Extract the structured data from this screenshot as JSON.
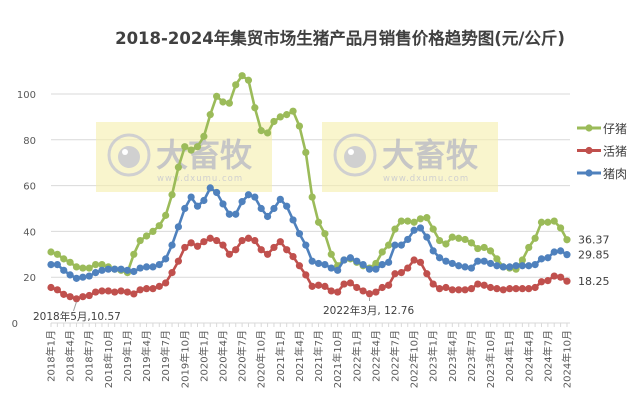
{
  "chart_data": {
    "type": "line",
    "title": "2018-2024年集贸市场生猪产品月销售价格趋势图(元/公斤)",
    "xlabel": "",
    "ylabel": "",
    "ylim": [
      0,
      120
    ],
    "y_ticks": [
      "0",
      "20",
      "40",
      "60",
      "80",
      "100"
    ],
    "grid": true,
    "legend_position": "right",
    "x_start": "2018年1月",
    "x_end": "2024年10月",
    "x_tick_labels": [
      "2018年1月",
      "2018年4月",
      "2018年7月",
      "2018年10月",
      "2019年1月",
      "2019年4月",
      "2019年7月",
      "2019年10月",
      "2020年1月",
      "2020年4月",
      "2020年7月",
      "2020年10月",
      "2021年1月",
      "2021年4月",
      "2021年7月",
      "2021年10月",
      "2022年1月",
      "2022年4月",
      "2022年7月",
      "2022年10月",
      "2023年1月",
      "2023年4月",
      "2023年7月",
      "2023年10月",
      "2024年1月",
      "2024年4月",
      "2024年7月",
      "2024年10月"
    ],
    "series": [
      {
        "name": "仔猪",
        "color": "#9BBB59",
        "end_label": "36.37",
        "values": [
          31,
          30,
          28,
          26.5,
          24.5,
          24,
          24,
          25.5,
          25.5,
          24.5,
          23.5,
          23,
          22,
          30,
          36,
          38,
          40,
          42.5,
          47,
          56,
          68,
          77,
          75.5,
          77,
          81.5,
          91,
          99,
          96.5,
          96,
          104,
          108,
          106,
          94,
          84,
          83,
          88,
          90,
          91,
          92.5,
          86,
          74.5,
          55,
          44,
          39,
          30,
          25,
          27.5,
          28,
          26.5,
          25,
          24,
          26,
          31,
          34,
          41,
          44.5,
          44.5,
          44,
          45.5,
          46,
          41,
          36,
          34.5,
          37.5,
          37,
          36.5,
          35,
          32.5,
          33,
          31.5,
          28,
          24.5,
          24,
          23.5,
          27.5,
          33,
          37,
          44,
          44,
          44.5,
          41.5,
          36.37
        ]
      },
      {
        "name": "活猪",
        "color": "#C0504D",
        "end_label": "18.25",
        "values": [
          15.5,
          14.5,
          12.5,
          11.5,
          10.57,
          11.5,
          12,
          13.5,
          14,
          14,
          13.5,
          14,
          13.5,
          12.7,
          14.5,
          15,
          15,
          16,
          17.5,
          22,
          27,
          33,
          35,
          33.5,
          35.5,
          37,
          36,
          34,
          30,
          32,
          36,
          37,
          36,
          32,
          30,
          33,
          35.5,
          32,
          29,
          25,
          21,
          16,
          16.5,
          16,
          14,
          13.5,
          17,
          17.5,
          15.5,
          14,
          12.76,
          13.5,
          15.5,
          16.5,
          21.5,
          22,
          24,
          27.5,
          26.5,
          21.5,
          17,
          15,
          15.5,
          14.5,
          14.5,
          14.5,
          15,
          17,
          16.5,
          15.5,
          15,
          14.5,
          15,
          15,
          15,
          15,
          15.5,
          18,
          18.5,
          20.5,
          20,
          18.25
        ]
      },
      {
        "name": "猪肉",
        "color": "#4F81BD",
        "end_label": "29.85",
        "values": [
          25.5,
          25.5,
          23,
          21,
          19.5,
          20,
          20.5,
          22,
          23,
          23.5,
          23.5,
          23.5,
          23,
          22.5,
          24,
          24.5,
          24.5,
          25.5,
          28,
          34,
          42,
          50,
          55,
          51,
          53.5,
          59,
          57,
          52,
          47.5,
          47.5,
          53,
          56,
          55,
          50,
          46.5,
          50,
          54,
          51,
          45,
          39,
          34,
          27,
          26,
          25.5,
          24,
          23,
          27.5,
          28.5,
          27,
          25.5,
          23.5,
          23.5,
          25.5,
          26.5,
          34,
          34,
          36.5,
          40.5,
          41.5,
          37.5,
          31.5,
          28.5,
          27,
          26,
          25,
          24.5,
          24,
          27,
          27,
          26,
          25,
          24.5,
          24.5,
          25,
          25,
          25,
          25.5,
          28,
          28.5,
          31,
          31.5,
          29.85
        ]
      }
    ],
    "annotations": [
      {
        "text": "2018年5月,10.57",
        "month": "2018年5月",
        "value": 10.57
      },
      {
        "text": "2022年3月, 12.76",
        "month": "2022年3月",
        "value": 12.76
      }
    ]
  },
  "watermark": {
    "logo_text": "大畜牧",
    "url": "www.dxumu.com"
  }
}
